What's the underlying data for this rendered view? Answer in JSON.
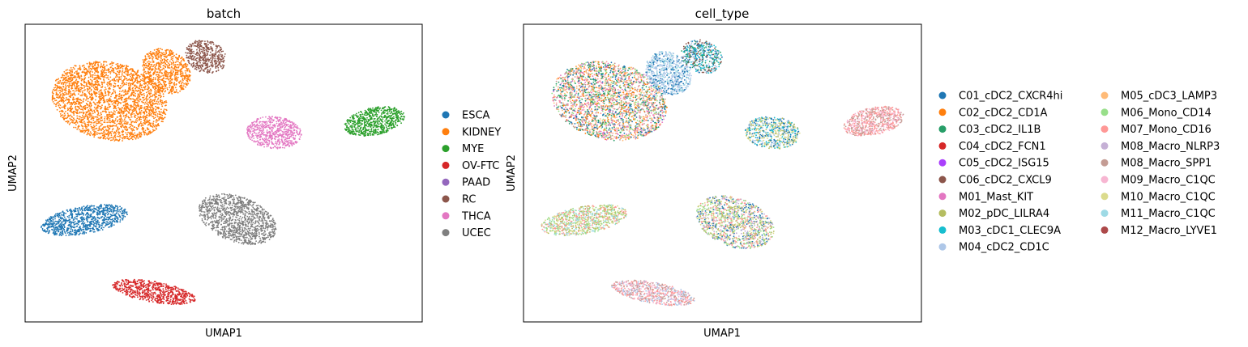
{
  "chart_data": [
    {
      "type": "scatter",
      "title": "batch",
      "xlabel": "UMAP1",
      "ylabel": "UMAP2",
      "legend_position": "right",
      "grid": false,
      "series": [
        {
          "name": "ESCA",
          "color": "#1f77b4"
        },
        {
          "name": "KIDNEY",
          "color": "#ff7f0e"
        },
        {
          "name": "MYE",
          "color": "#2ca02c"
        },
        {
          "name": "OV-FTC",
          "color": "#d62728"
        },
        {
          "name": "PAAD",
          "color": "#9467bd"
        },
        {
          "name": "RC",
          "color": "#8c564b"
        },
        {
          "name": "THCA",
          "color": "#e377c2"
        },
        {
          "name": "UCEC",
          "color": "#7f7f7f"
        }
      ]
    },
    {
      "type": "scatter",
      "title": "cell_type",
      "xlabel": "UMAP1",
      "ylabel": "UMAP2",
      "legend_position": "right",
      "grid": false,
      "series": [
        {
          "name": "C01_cDC2_CXCR4hi",
          "color": "#1f77b4"
        },
        {
          "name": "C02_cDC2_CD1A",
          "color": "#ff7f0e"
        },
        {
          "name": "C03_cDC2_IL1B",
          "color": "#279e68"
        },
        {
          "name": "C04_cDC2_FCN1",
          "color": "#d62728"
        },
        {
          "name": "C05_cDC2_ISG15",
          "color": "#aa40fc"
        },
        {
          "name": "C06_cDC2_CXCL9",
          "color": "#8c564b"
        },
        {
          "name": "M01_Mast_KIT",
          "color": "#e377c2"
        },
        {
          "name": "M02_pDC_LILRA4",
          "color": "#b5bd61"
        },
        {
          "name": "M03_cDC1_CLEC9A",
          "color": "#17becf"
        },
        {
          "name": "M04_cDC2_CD1C",
          "color": "#aec7e8"
        },
        {
          "name": "M05_cDC3_LAMP3",
          "color": "#ffbb78"
        },
        {
          "name": "M06_Mono_CD14",
          "color": "#98df8a"
        },
        {
          "name": "M07_Mono_CD16",
          "color": "#ff9896"
        },
        {
          "name": "M08_Macro_NLRP3",
          "color": "#c5b0d5"
        },
        {
          "name": "M08_Macro_SPP1",
          "color": "#c49c94"
        },
        {
          "name": "M09_Macro_C1QC",
          "color": "#f7b6d2"
        },
        {
          "name": "M10_Macro_C1QC",
          "color": "#dbdb8d"
        },
        {
          "name": "M11_Macro_C1QC",
          "color": "#9edae5"
        },
        {
          "name": "M12_Macro_LYVE1",
          "color": "#ad494a"
        }
      ]
    }
  ]
}
